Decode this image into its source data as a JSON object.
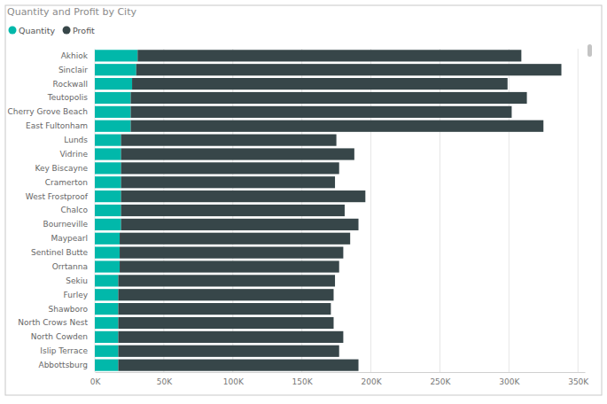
{
  "chart_data": {
    "type": "bar",
    "title": "Quantity and Profit by City",
    "orientation": "horizontal",
    "stacked": true,
    "grid": true,
    "legend": "top-left",
    "categories": [
      "Akhiok",
      "Sinclair",
      "Rockwall",
      "Teutopolis",
      "Cherry Grove Beach",
      "East Fultonham",
      "Lunds",
      "Vidrine",
      "Key Biscayne",
      "Cramerton",
      "West Frostproof",
      "Chalco",
      "Bourneville",
      "Maypearl",
      "Sentinel Butte",
      "Orrtanna",
      "Sekiu",
      "Furley",
      "Shawboro",
      "North Crows Nest",
      "North Cowden",
      "Islip Terrace",
      "Abbottsburg"
    ],
    "series": [
      {
        "name": "Quantity",
        "color": "#01b8aa",
        "values": [
          31000,
          30000,
          27000,
          26000,
          26000,
          26000,
          19000,
          19000,
          19000,
          19000,
          19000,
          19000,
          19000,
          18000,
          18000,
          18000,
          17000,
          17000,
          17000,
          17000,
          17000,
          17000,
          17000
        ]
      },
      {
        "name": "Profit",
        "color": "#374649",
        "values": [
          278000,
          308000,
          272000,
          287000,
          276000,
          299000,
          156000,
          169000,
          158000,
          155000,
          177000,
          162000,
          172000,
          167000,
          162000,
          159000,
          157000,
          156000,
          154000,
          156000,
          163000,
          160000,
          174000
        ]
      }
    ],
    "xlim": [
      0,
      355000
    ],
    "xticks": [
      {
        "value": 0,
        "label": "0K"
      },
      {
        "value": 50000,
        "label": "50K"
      },
      {
        "value": 100000,
        "label": "100K"
      },
      {
        "value": 150000,
        "label": "150K"
      },
      {
        "value": 200000,
        "label": "200K"
      },
      {
        "value": 250000,
        "label": "250K"
      },
      {
        "value": 300000,
        "label": "300K"
      },
      {
        "value": 350000,
        "label": "350K"
      }
    ]
  }
}
